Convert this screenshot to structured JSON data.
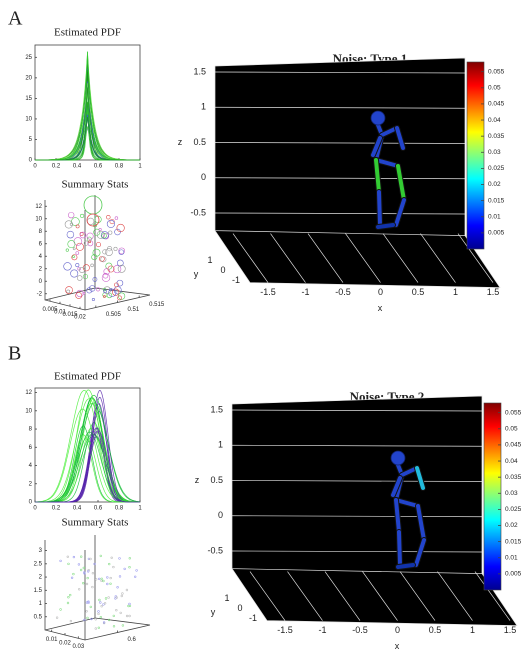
{
  "chart_data": [
    {
      "type": "pdf-line",
      "panel": "A",
      "title": "Estimated PDF",
      "xlim": [
        0,
        1
      ],
      "ylim": [
        0,
        28
      ],
      "xticks": [
        0,
        0.2,
        0.4,
        0.6,
        0.8,
        1
      ],
      "yticks": [
        0,
        5,
        10,
        15,
        20,
        25
      ]
    },
    {
      "type": "scatter3d",
      "title": "Summary Stats",
      "xticks": [
        0.005,
        0.01,
        0.015,
        0.02
      ],
      "yticks": [
        0.505,
        0.51,
        0.515
      ],
      "zlim": [
        -3,
        13
      ],
      "zticks": [
        -2,
        0,
        2,
        4,
        6,
        8,
        10,
        12
      ]
    },
    {
      "type": "skeleton3d",
      "title": "Noise: Type 1",
      "xlabel": "x",
      "ylabel": "y",
      "zlabel": "z",
      "xlim": [
        -1.5,
        1.5
      ],
      "xticks": [
        -1.5,
        -1,
        -0.5,
        0,
        0.5,
        1,
        1.5
      ],
      "yticks": [
        1,
        0,
        -1
      ],
      "zlim": [
        -0.75,
        1.5
      ],
      "zticks": [
        -0.5,
        0,
        0.5,
        1,
        1.5
      ],
      "clim": [
        0,
        0.058
      ],
      "cticks": [
        0.005,
        0.01,
        0.015,
        0.02,
        0.025,
        0.03,
        0.035,
        0.04,
        0.045,
        0.05,
        0.055
      ]
    },
    {
      "type": "pdf-line",
      "panel": "B",
      "title": "Estimated PDF",
      "xlim": [
        0,
        1
      ],
      "ylim": [
        0,
        12.5
      ],
      "xticks": [
        0,
        0.2,
        0.4,
        0.6,
        0.8,
        1
      ],
      "yticks": [
        0,
        2,
        4,
        6,
        8,
        10,
        12
      ]
    },
    {
      "type": "scatter3d",
      "title": "Summary Stats",
      "xticks": [
        0.01,
        0.02,
        0.03
      ],
      "yticks": [
        0.6
      ],
      "zlim": [
        0,
        3.4
      ],
      "zticks": [
        0.5,
        1,
        1.5,
        2,
        2.5,
        3
      ]
    },
    {
      "type": "skeleton3d",
      "title": "Noise: Type 2",
      "xlabel": "x",
      "ylabel": "y",
      "zlabel": "z",
      "xlim": [
        -1.5,
        1.5
      ],
      "xticks": [
        -1.5,
        -1,
        -0.5,
        0,
        0.5,
        1,
        1.5
      ],
      "yticks": [
        1,
        0,
        -1
      ],
      "zlim": [
        -0.75,
        1.5
      ],
      "zticks": [
        -0.5,
        0,
        0.5,
        1,
        1.5
      ],
      "clim": [
        0,
        0.058
      ],
      "cticks": [
        0.005,
        0.01,
        0.015,
        0.02,
        0.025,
        0.03,
        0.035,
        0.04,
        0.045,
        0.05,
        0.055
      ]
    }
  ]
}
